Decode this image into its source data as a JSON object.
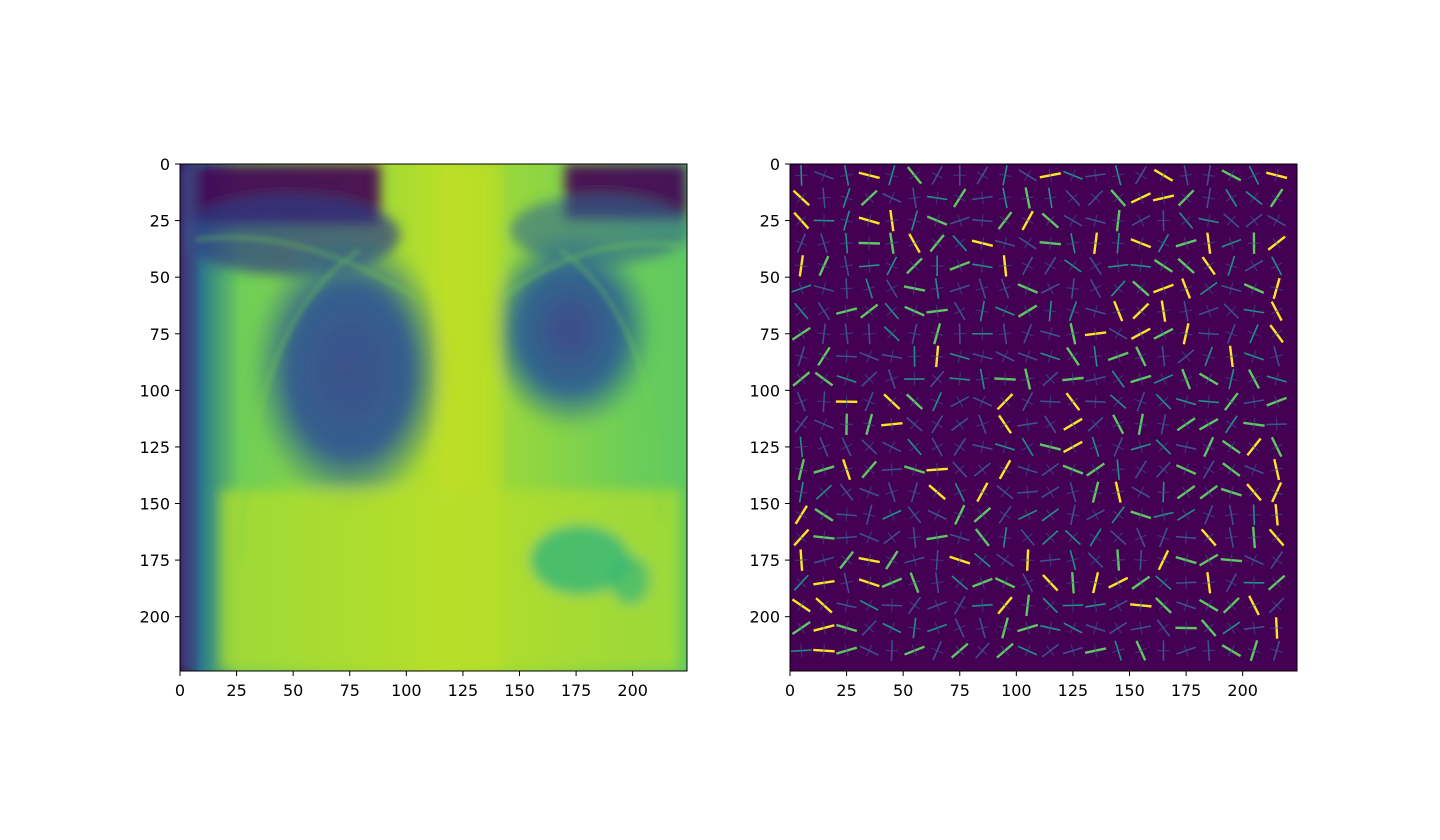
{
  "chart_data": [
    {
      "type": "heatmap",
      "colormap": "viridis",
      "content": "chest X-ray image",
      "title": "",
      "xlabel": "",
      "ylabel": "",
      "xlim": [
        0,
        224
      ],
      "ylim": [
        224,
        0
      ],
      "grid": false,
      "xticks": [
        0,
        25,
        50,
        75,
        100,
        125,
        150,
        175,
        200
      ],
      "yticks": [
        0,
        25,
        50,
        75,
        100,
        125,
        150,
        175,
        200
      ],
      "xtick_labels": [
        "0",
        "25",
        "50",
        "75",
        "100",
        "125",
        "150",
        "175",
        "200"
      ],
      "ytick_labels": [
        "0",
        "25",
        "50",
        "75",
        "100",
        "125",
        "150",
        "175",
        "200"
      ]
    },
    {
      "type": "heatmap",
      "colormap": "viridis",
      "content": "HOG feature visualization (oriented gradient cells)",
      "title": "",
      "xlabel": "",
      "ylabel": "",
      "xlim": [
        0,
        224
      ],
      "ylim": [
        224,
        0
      ],
      "grid": false,
      "cell_size": 10,
      "xticks": [
        0,
        25,
        50,
        75,
        100,
        125,
        150,
        175,
        200
      ],
      "yticks": [
        0,
        25,
        50,
        75,
        100,
        125,
        150,
        175,
        200
      ],
      "xtick_labels": [
        "0",
        "25",
        "50",
        "75",
        "100",
        "125",
        "150",
        "175",
        "200"
      ],
      "ytick_labels": [
        "0",
        "25",
        "50",
        "75",
        "100",
        "125",
        "150",
        "175",
        "200"
      ]
    }
  ],
  "colors": {
    "viridis_dark": "#440154",
    "viridis_blue": "#3b528b",
    "viridis_teal": "#21918c",
    "viridis_green": "#5ec962",
    "viridis_yellow": "#fde725"
  }
}
